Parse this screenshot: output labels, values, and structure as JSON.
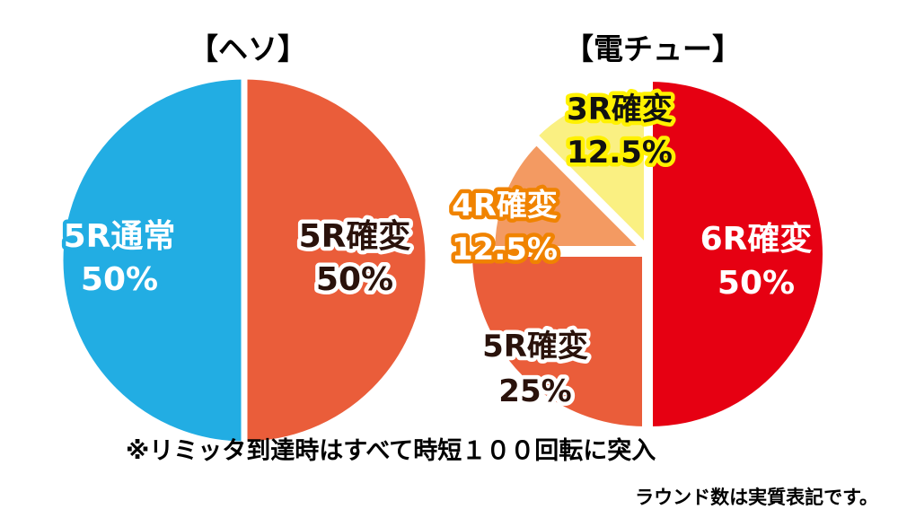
{
  "chart_data": [
    {
      "type": "pie",
      "title": "【ヘソ】",
      "slices": [
        {
          "name": "5R確変",
          "value": 50,
          "label": "50%",
          "color": "#EA5D3A",
          "label_color": "#2a120b",
          "outline_color": "#ffffff"
        },
        {
          "name": "5R通常",
          "value": 50,
          "label": "50%",
          "color": "#22ADE3",
          "label_color": "#ffffff",
          "outline_color": "#22ADE3"
        }
      ]
    },
    {
      "type": "pie",
      "title": "【電チュー】",
      "slices": [
        {
          "name": "6R確変",
          "value": 50,
          "label": "50%",
          "color": "#E60012",
          "label_color": "#ffffff",
          "outline_color": "#E60012"
        },
        {
          "name": "5R確変",
          "value": 25,
          "label": "25%",
          "color": "#EA5D3A",
          "label_color": "#2a120b",
          "outline_color": "#ffffff"
        },
        {
          "name": "4R確変",
          "value": 12.5,
          "label": "12.5%",
          "color": "#F39A62",
          "label_color": "#ffffff",
          "outline_color": "#F08300"
        },
        {
          "name": "3R確変",
          "value": 12.5,
          "label": "12.5%",
          "color": "#FAF082",
          "label_color": "#111111",
          "outline_color": "#FFF100"
        }
      ]
    }
  ],
  "footnote": "※リミッタ到達時はすべて時短１００回転に突入",
  "subnote": "ラウンド数は実質表記です。"
}
